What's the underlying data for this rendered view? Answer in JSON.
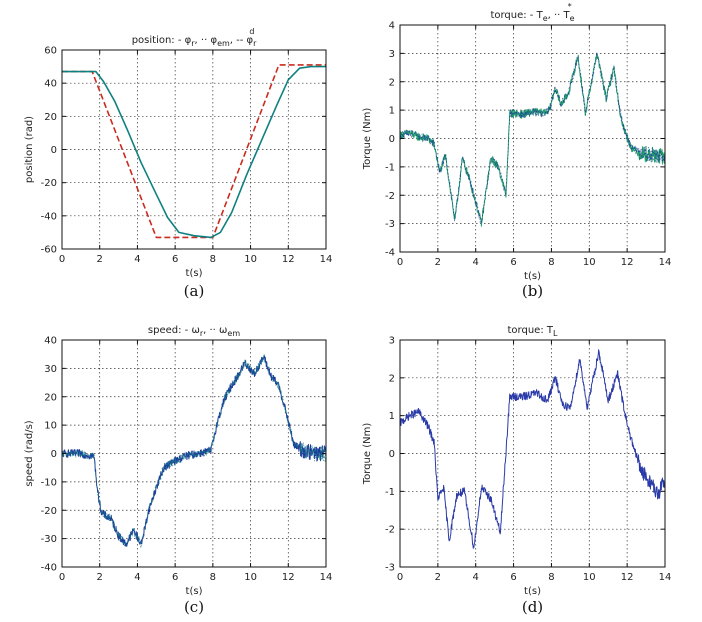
{
  "chart_data": [
    {
      "type": "line",
      "caption": "(a)",
      "title_parts": [
        "position: - ",
        "φ",
        "r",
        ", ·· ",
        "φ",
        "em",
        ", -- ",
        "φ",
        "r",
        "d"
      ],
      "xlabel": "t(s)",
      "ylabel": "position (rad)",
      "xlim": [
        0,
        14
      ],
      "ylim": [
        -60,
        60
      ],
      "xticks": [
        0,
        2,
        4,
        6,
        8,
        10,
        12,
        14
      ],
      "yticks": [
        -60,
        -40,
        -20,
        0,
        20,
        40,
        60
      ],
      "grid": true,
      "series": [
        {
          "color": "#cc2a1e",
          "dash": "dashed",
          "x": [
            0,
            1.6,
            5.0,
            8.0,
            11.5,
            14
          ],
          "y": [
            47,
            47,
            -53,
            -53,
            51,
            51
          ]
        },
        {
          "color": "#0f8080",
          "dash": "solid",
          "x": [
            0,
            1.8,
            2.2,
            2.8,
            3.5,
            4.2,
            5.0,
            5.6,
            6.2,
            7.0,
            7.9,
            8.4,
            9.0,
            9.8,
            10.6,
            11.4,
            12.0,
            12.6,
            13.2,
            14
          ],
          "y": [
            47,
            47,
            41,
            29,
            11,
            -8,
            -27,
            -41,
            -50,
            -52,
            -53,
            -50,
            -38,
            -15,
            6,
            27,
            42,
            49,
            50,
            50
          ]
        }
      ]
    },
    {
      "type": "line",
      "caption": "(b)",
      "title_parts": [
        "torque: - ",
        "T",
        "e",
        ", ·· ",
        "T",
        "e",
        "*"
      ],
      "xlabel": "t(s)",
      "ylabel": "Torque (Nm)",
      "xlim": [
        0,
        14
      ],
      "ylim": [
        -4,
        4
      ],
      "xticks": [
        0,
        2,
        4,
        6,
        8,
        10,
        12,
        14
      ],
      "yticks": [
        -4,
        -3,
        -2,
        -1,
        0,
        1,
        2,
        3,
        4
      ],
      "grid": true,
      "series": [
        {
          "color": "#22a06b",
          "dash": "solid",
          "x": [
            0,
            0.5,
            1.0,
            1.5,
            1.8,
            2.1,
            2.4,
            2.9,
            3.3,
            3.7,
            4.3,
            4.8,
            5.2,
            5.6,
            5.8,
            6.5,
            7.0,
            7.5,
            7.9,
            8.2,
            8.5,
            8.9,
            9.4,
            9.8,
            10.4,
            10.9,
            11.3,
            11.6,
            11.8,
            12.2,
            12.6,
            13.0,
            13.5,
            14
          ],
          "y": [
            0.1,
            0.2,
            0.05,
            0,
            -0.2,
            -1.2,
            -0.6,
            -2.9,
            -0.7,
            -1.5,
            -3.0,
            -0.7,
            -1.0,
            -2.0,
            0.9,
            0.85,
            0.95,
            0.9,
            1.0,
            1.8,
            1.2,
            1.6,
            2.9,
            0.9,
            3.0,
            1.4,
            2.5,
            1.0,
            0.4,
            -0.3,
            -0.5,
            -0.55,
            -0.6,
            -0.65
          ]
        },
        {
          "color": "#1f3a9e",
          "dash": "dotted",
          "x": [
            0,
            0.5,
            1.0,
            1.5,
            1.8,
            2.1,
            2.4,
            2.9,
            3.3,
            3.7,
            4.3,
            4.8,
            5.2,
            5.6,
            5.8,
            6.5,
            7.0,
            7.5,
            7.9,
            8.2,
            8.5,
            8.9,
            9.4,
            9.8,
            10.4,
            10.9,
            11.3,
            11.6,
            11.8,
            12.2,
            12.6,
            13.0,
            13.5,
            14
          ],
          "y": [
            0.1,
            0.2,
            0.05,
            0,
            -0.2,
            -1.2,
            -0.6,
            -2.9,
            -0.7,
            -1.5,
            -3.0,
            -0.7,
            -1.0,
            -2.0,
            0.9,
            0.85,
            0.95,
            0.9,
            1.0,
            1.8,
            1.2,
            1.6,
            2.9,
            0.9,
            3.0,
            1.4,
            2.5,
            1.0,
            0.4,
            -0.3,
            -0.5,
            -0.55,
            -0.6,
            -0.65
          ]
        }
      ]
    },
    {
      "type": "line",
      "caption": "(c)",
      "title_parts": [
        "speed: - ",
        "ω",
        "r",
        ", ·· ",
        "ω",
        "em"
      ],
      "xlabel": "t(s)",
      "ylabel": "speed (rad/s)",
      "xlim": [
        0,
        14
      ],
      "ylim": [
        -40,
        40
      ],
      "xticks": [
        0,
        2,
        4,
        6,
        8,
        10,
        12,
        14
      ],
      "yticks": [
        -40,
        -30,
        -20,
        -10,
        0,
        10,
        20,
        30,
        40
      ],
      "grid": true,
      "series": [
        {
          "color": "#1f3a9e",
          "dash": "solid",
          "x": [
            0,
            1.0,
            1.7,
            1.9,
            2.1,
            2.6,
            3.0,
            3.4,
            3.8,
            4.2,
            4.6,
            5.0,
            5.4,
            5.9,
            6.5,
            7.2,
            7.9,
            8.2,
            8.6,
            9.0,
            9.3,
            9.7,
            10.2,
            10.7,
            11.1,
            11.5,
            11.9,
            12.3,
            12.8,
            13.4,
            14
          ],
          "y": [
            0,
            0,
            -1,
            -14,
            -21,
            -23,
            -29,
            -32,
            -27,
            -32,
            -20,
            -12,
            -5,
            -3,
            -1,
            0,
            1,
            10,
            19,
            24,
            27,
            32,
            28,
            34,
            27,
            24,
            14,
            3,
            1,
            0,
            0
          ]
        },
        {
          "color": "#0f8080",
          "dash": "dotted",
          "x": [
            0,
            1.0,
            1.7,
            1.9,
            2.1,
            2.6,
            3.0,
            3.4,
            3.8,
            4.2,
            4.6,
            5.0,
            5.4,
            5.9,
            6.5,
            7.2,
            7.9,
            8.2,
            8.6,
            9.0,
            9.3,
            9.7,
            10.2,
            10.7,
            11.1,
            11.5,
            11.9,
            12.3,
            12.8,
            13.4,
            14
          ],
          "y": [
            0,
            0,
            -1,
            -14,
            -21,
            -23,
            -29,
            -32,
            -27,
            -32,
            -20,
            -12,
            -5,
            -3,
            -1,
            0,
            1,
            10,
            19,
            24,
            27,
            32,
            28,
            34,
            27,
            24,
            14,
            3,
            1,
            0,
            0
          ]
        }
      ]
    },
    {
      "type": "line",
      "caption": "(d)",
      "title_parts": [
        "torque: ",
        "T",
        "L"
      ],
      "xlabel": "t(s)",
      "ylabel": "Torque (Nm)",
      "xlim": [
        0,
        14
      ],
      "ylim": [
        -3,
        3
      ],
      "xticks": [
        0,
        2,
        4,
        6,
        8,
        10,
        12,
        14
      ],
      "yticks": [
        -3,
        -2,
        -1,
        0,
        1,
        2,
        3
      ],
      "grid": true,
      "series": [
        {
          "color": "#2a3aa8",
          "dash": "solid",
          "x": [
            0,
            0.5,
            1.0,
            1.5,
            1.8,
            2.0,
            2.3,
            2.6,
            3.0,
            3.4,
            3.9,
            4.3,
            4.8,
            5.3,
            5.8,
            6.5,
            7.2,
            7.8,
            8.2,
            8.6,
            9.0,
            9.5,
            9.9,
            10.5,
            11.0,
            11.5,
            11.9,
            12.3,
            12.8,
            13.3,
            13.6,
            14
          ],
          "y": [
            0.8,
            1.0,
            1.1,
            0.7,
            0.3,
            -1.2,
            -0.9,
            -2.3,
            -1.1,
            -1.0,
            -2.5,
            -0.9,
            -1.2,
            -2.1,
            1.5,
            1.5,
            1.6,
            1.4,
            2.0,
            1.3,
            1.2,
            2.5,
            1.2,
            2.7,
            1.4,
            2.1,
            1.0,
            0.2,
            -0.5,
            -0.8,
            -1.1,
            -0.7
          ]
        }
      ]
    }
  ]
}
